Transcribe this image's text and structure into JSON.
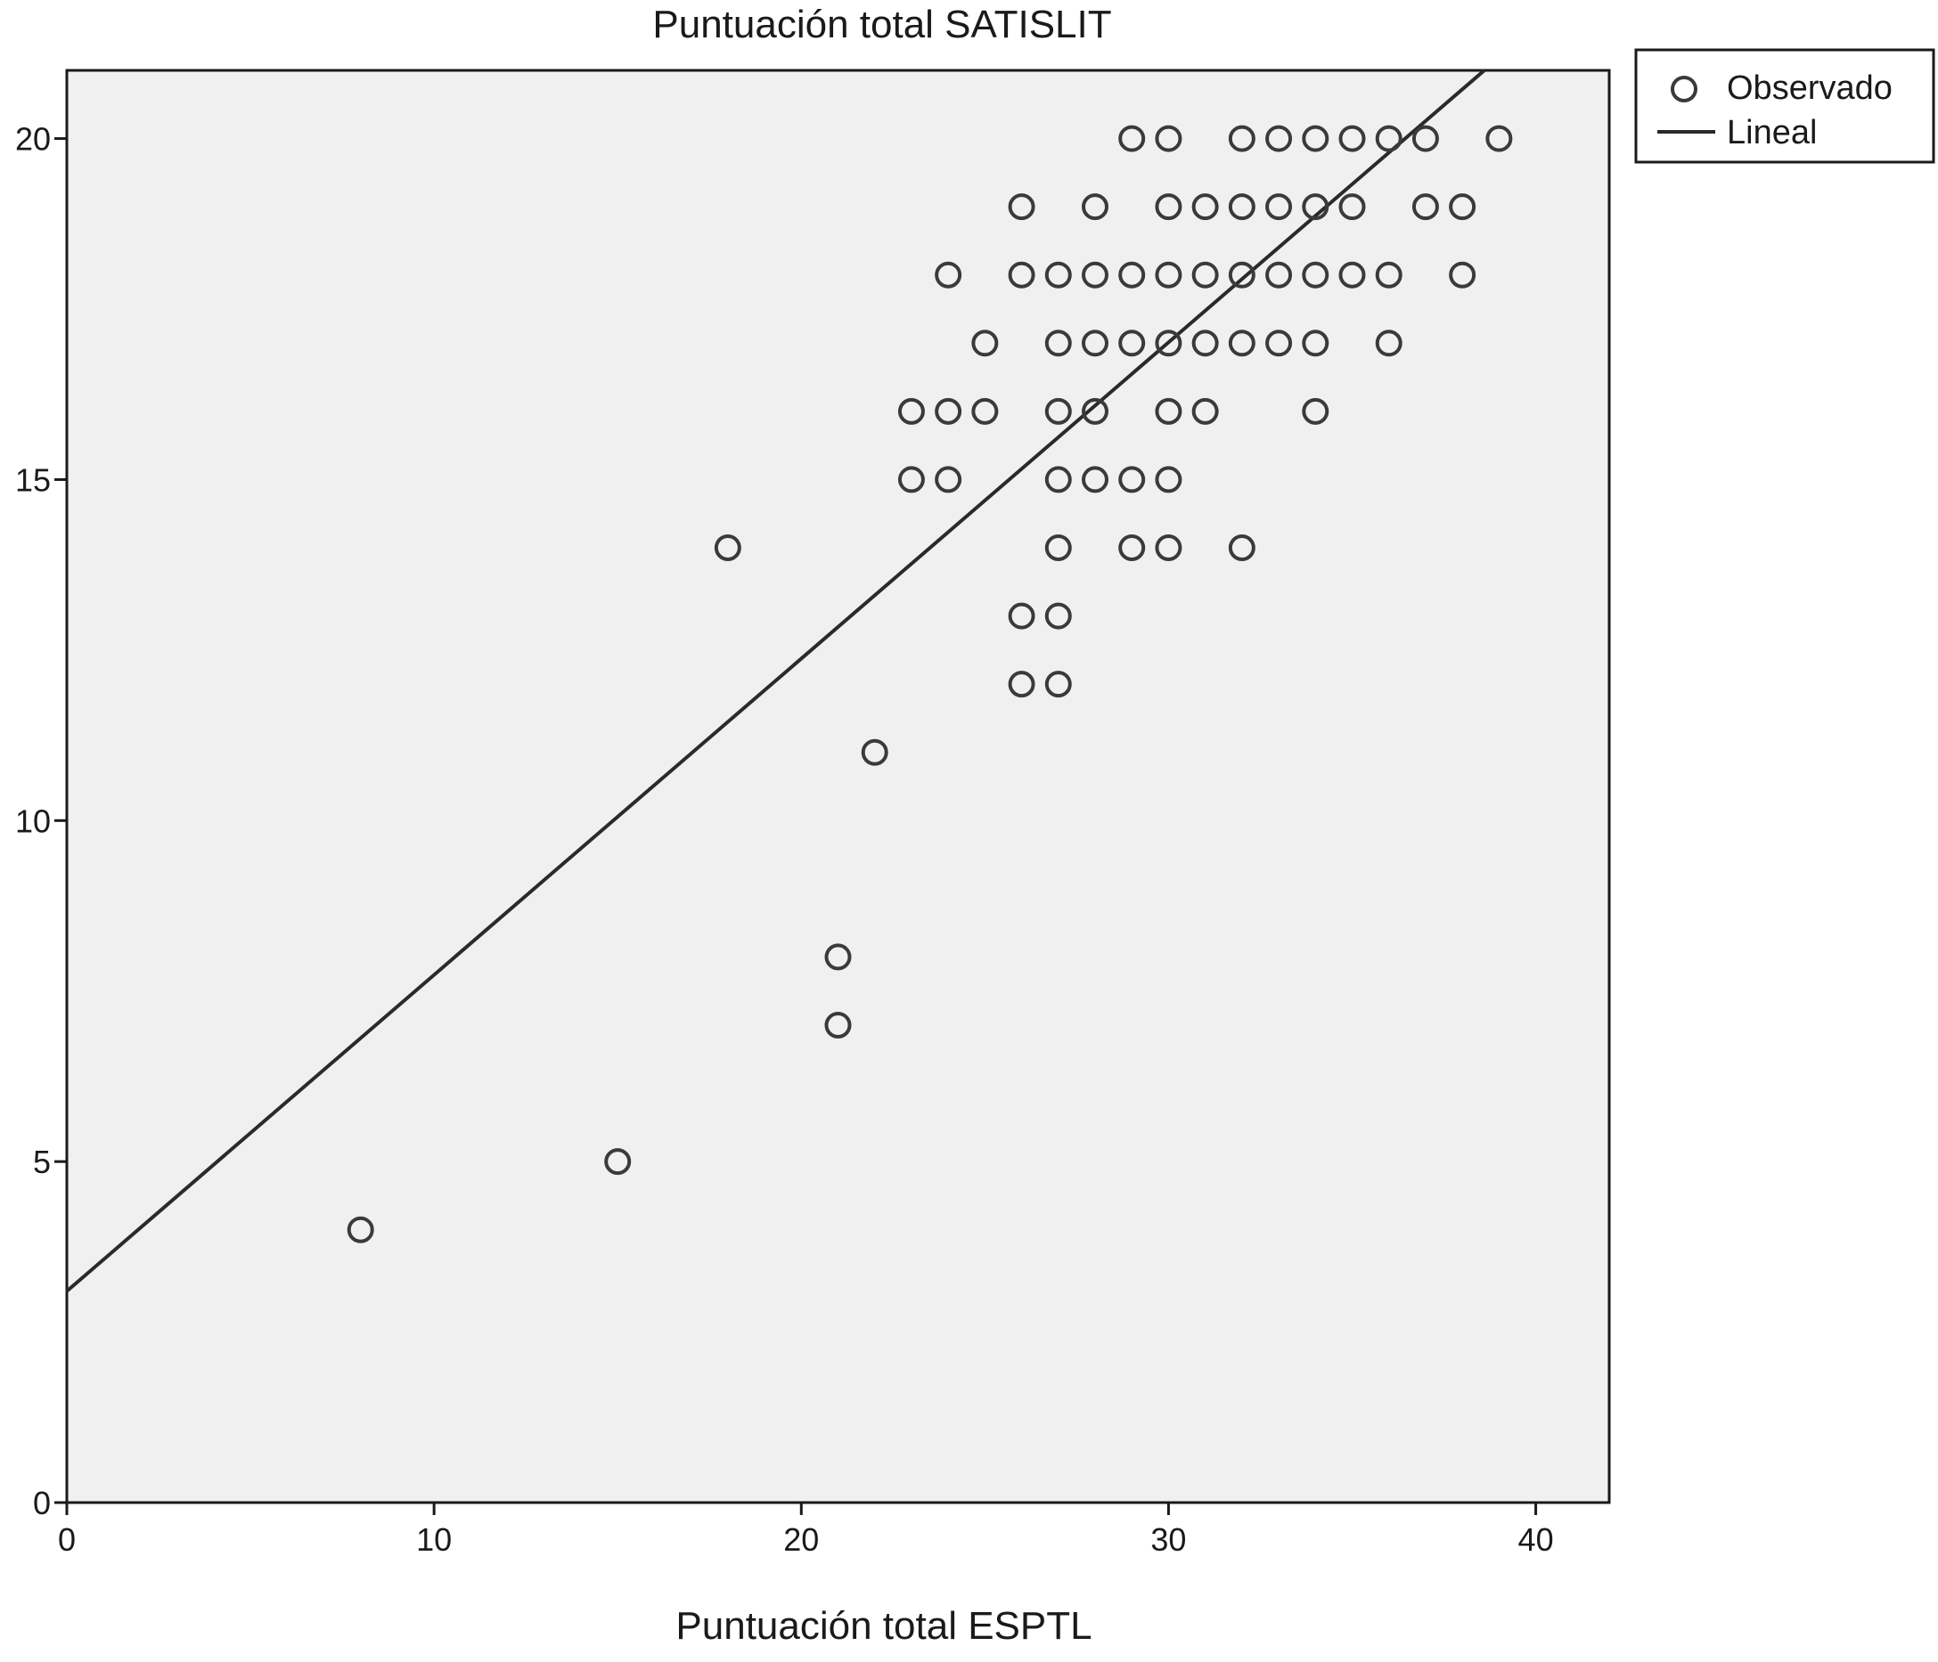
{
  "chart_data": {
    "type": "scatter",
    "title": "Puntuación total SATISLIT",
    "xlabel": "Puntuación total ESPTL",
    "ylabel": "",
    "xlim": [
      0,
      42
    ],
    "ylim": [
      0,
      21
    ],
    "x_ticks": [
      "0",
      "10",
      "20",
      "30",
      "40"
    ],
    "y_ticks": [
      "0",
      "5",
      "10",
      "15",
      "20"
    ],
    "x_tick_values": [
      0,
      10,
      20,
      30,
      40
    ],
    "y_tick_values": [
      0,
      5,
      10,
      15,
      20
    ],
    "grid": false,
    "legend": {
      "placement": "top-right, outside plot",
      "entries": [
        {
          "label": "Observado",
          "marker": "circle"
        },
        {
          "label": "Lineal",
          "marker": "line"
        }
      ]
    },
    "series": [
      {
        "name": "Observado",
        "points": [
          [
            29,
            20
          ],
          [
            30,
            20
          ],
          [
            32,
            20
          ],
          [
            33,
            20
          ],
          [
            34,
            20
          ],
          [
            35,
            20
          ],
          [
            36,
            20
          ],
          [
            37,
            20
          ],
          [
            39,
            20
          ],
          [
            26,
            19
          ],
          [
            28,
            19
          ],
          [
            30,
            19
          ],
          [
            31,
            19
          ],
          [
            32,
            19
          ],
          [
            33,
            19
          ],
          [
            34,
            19
          ],
          [
            35,
            19
          ],
          [
            37,
            19
          ],
          [
            38,
            19
          ],
          [
            24,
            18
          ],
          [
            26,
            18
          ],
          [
            27,
            18
          ],
          [
            28,
            18
          ],
          [
            29,
            18
          ],
          [
            30,
            18
          ],
          [
            31,
            18
          ],
          [
            32,
            18
          ],
          [
            33,
            18
          ],
          [
            34,
            18
          ],
          [
            35,
            18
          ],
          [
            36,
            18
          ],
          [
            38,
            18
          ],
          [
            25,
            17
          ],
          [
            27,
            17
          ],
          [
            28,
            17
          ],
          [
            29,
            17
          ],
          [
            30,
            17
          ],
          [
            31,
            17
          ],
          [
            32,
            17
          ],
          [
            33,
            17
          ],
          [
            34,
            17
          ],
          [
            36,
            17
          ],
          [
            23,
            16
          ],
          [
            24,
            16
          ],
          [
            25,
            16
          ],
          [
            27,
            16
          ],
          [
            28,
            16
          ],
          [
            30,
            16
          ],
          [
            31,
            16
          ],
          [
            34,
            16
          ],
          [
            23,
            15
          ],
          [
            24,
            15
          ],
          [
            27,
            15
          ],
          [
            28,
            15
          ],
          [
            29,
            15
          ],
          [
            30,
            15
          ],
          [
            18,
            14
          ],
          [
            27,
            14
          ],
          [
            29,
            14
          ],
          [
            30,
            14
          ],
          [
            32,
            14
          ],
          [
            26,
            13
          ],
          [
            27,
            13
          ],
          [
            26,
            12
          ],
          [
            27,
            12
          ],
          [
            22,
            11
          ],
          [
            21,
            8
          ],
          [
            21,
            7
          ],
          [
            15,
            5
          ],
          [
            8,
            4
          ]
        ]
      },
      {
        "name": "Lineal",
        "line": {
          "x": [
            0,
            38.6
          ],
          "y": [
            3.1,
            21
          ]
        }
      }
    ]
  },
  "colors": {
    "plot_background": "#f0f0f0",
    "marker_stroke": "#3a3a3a",
    "line": "#2a2a2a",
    "axis": "#1a1a1a"
  }
}
